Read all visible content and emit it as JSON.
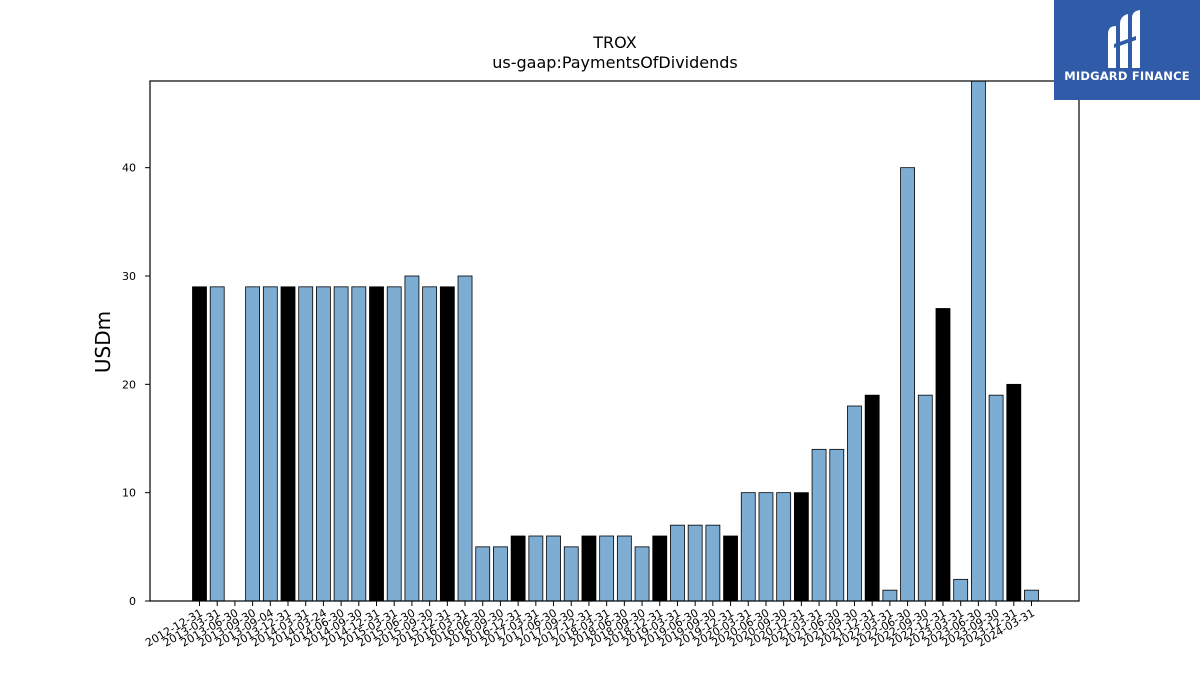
{
  "brand": {
    "name": "MIDGARD FINANCE",
    "logo_icon": "midgard-logo-icon",
    "bg_color": "#2f5ba8"
  },
  "chart_data": {
    "type": "bar",
    "title": "TROX",
    "subtitle": "us-gaap:PaymentsOfDividends",
    "xlabel": "",
    "ylabel": "USDm",
    "ylim": [
      0,
      48
    ],
    "yticks": [
      0,
      10,
      20,
      30,
      40
    ],
    "grid": false,
    "legend": "none",
    "colors": {
      "quarterly": "#7eadd4",
      "annual": "#000000"
    },
    "categories": [
      "2012-12-31",
      "2013-03-31",
      "2013-06-30",
      "2013-09-30",
      "2013-09-04",
      "2013-12-31",
      "2014-03-31",
      "2014-03-24",
      "2014-06-30",
      "2014-09-30",
      "2014-12-31",
      "2015-03-31",
      "2015-06-30",
      "2015-09-30",
      "2015-12-31",
      "2016-03-31",
      "2016-06-30",
      "2016-09-30",
      "2016-12-31",
      "2017-03-31",
      "2017-06-30",
      "2017-09-30",
      "2017-12-31",
      "2018-03-31",
      "2018-06-30",
      "2018-09-30",
      "2018-12-31",
      "2019-03-31",
      "2019-06-30",
      "2019-09-30",
      "2019-12-31",
      "2020-03-31",
      "2020-06-30",
      "2020-09-30",
      "2020-12-31",
      "2021-03-31",
      "2021-06-30",
      "2021-09-30",
      "2021-12-31",
      "2022-03-31",
      "2022-06-30",
      "2022-09-30",
      "2022-12-31",
      "2023-03-31",
      "2023-06-30",
      "2023-09-30",
      "2023-12-31",
      "2024-03-31"
    ],
    "values": [
      29,
      29,
      0,
      29,
      29,
      29,
      29,
      29,
      29,
      29,
      29,
      29,
      30,
      29,
      29,
      30,
      5,
      5,
      6,
      6,
      6,
      5,
      6,
      6,
      6,
      5,
      6,
      7,
      7,
      7,
      6,
      10,
      10,
      10,
      10,
      14,
      14,
      18,
      19,
      1,
      40,
      19,
      27,
      2,
      48,
      19,
      20,
      1
    ],
    "annual_flags": [
      1,
      0,
      0,
      0,
      0,
      1,
      0,
      0,
      0,
      0,
      1,
      0,
      0,
      0,
      1,
      0,
      0,
      0,
      1,
      0,
      0,
      0,
      1,
      0,
      0,
      0,
      1,
      0,
      0,
      0,
      1,
      0,
      0,
      0,
      1,
      0,
      0,
      0,
      1,
      0,
      0,
      0,
      1,
      0,
      0,
      0,
      1,
      0
    ]
  }
}
